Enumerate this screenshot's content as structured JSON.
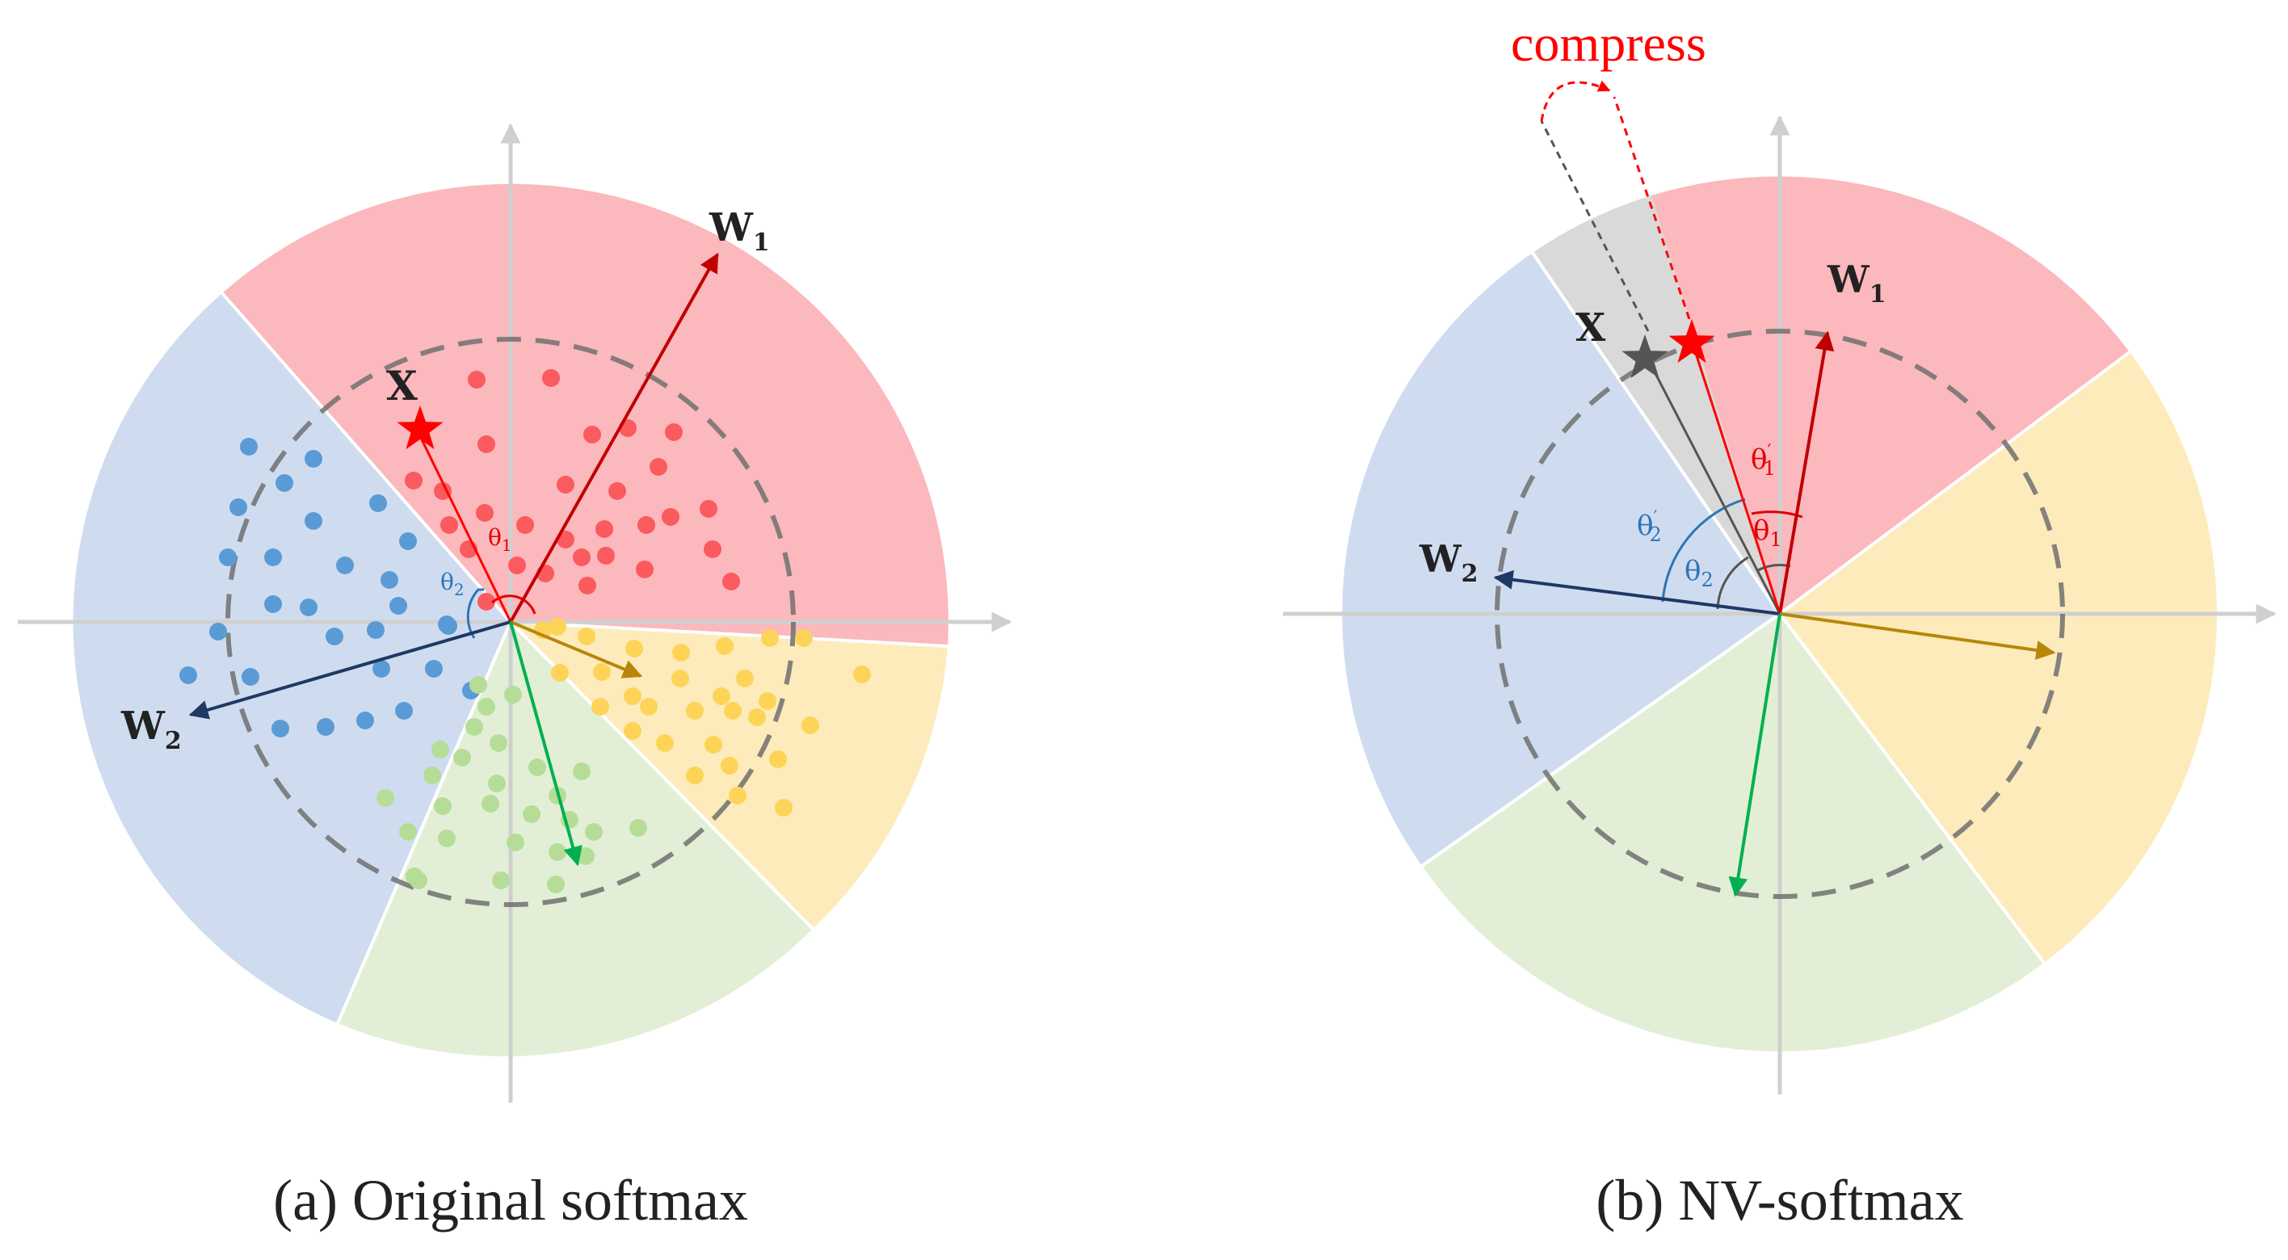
{
  "panels": [
    {
      "id": "a",
      "caption": "(a) Original softmax",
      "vector_labels": {
        "w1_main": "W",
        "w1_sub": "1",
        "w2_main": "W",
        "w2_sub": "2",
        "x": "X"
      },
      "angle_labels": {
        "theta1": "θ",
        "theta1_sub": "1",
        "theta2": "θ",
        "theta2_sub": "2"
      }
    },
    {
      "id": "b",
      "caption": "(b) NV-softmax",
      "annotation": "compress",
      "vector_labels": {
        "w1_main": "W",
        "w1_sub": "1",
        "w2_main": "W",
        "w2_sub": "2",
        "x": "X"
      },
      "angle_labels": {
        "theta1": "θ",
        "theta1_sub": "1",
        "theta1p": "θ",
        "theta1p_sub": "1",
        "theta1p_prime": "′",
        "theta2": "θ",
        "theta2_sub": "2",
        "theta2p": "θ",
        "theta2p_sub": "2",
        "theta2p_prime": "′"
      }
    }
  ],
  "colors": {
    "red_region": "#fbb8bd",
    "blue_region": "#cfdcf0",
    "yellow_region": "#fdebbb",
    "green_region": "#e2efd6",
    "gray_region": "#d9d9d9",
    "red_dot": "#fb5a5e",
    "blue_dot": "#5b9bd5",
    "yellow_dot": "#fdd458",
    "green_dot": "#b6dd98",
    "w1_arrow": "#c00000",
    "w2_arrow": "#1f3864",
    "yellow_arrow": "#b8860b",
    "green_arrow": "#00b050",
    "star_red": "#ff0000",
    "star_gray": "#555555",
    "axis": "#cfcfcf",
    "dashed_circle": "#707070",
    "angle_red": "#e00000",
    "angle_blue": "#2e75b6"
  }
}
